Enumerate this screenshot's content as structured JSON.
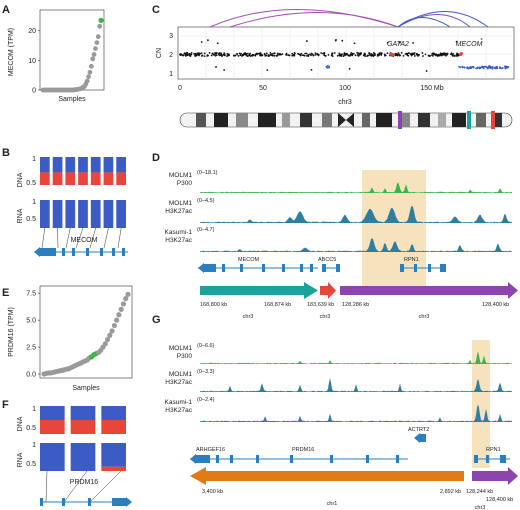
{
  "panel_labels": {
    "a": "A",
    "b": "B",
    "c": "C",
    "d": "D",
    "e": "E",
    "f": "F",
    "g": "G"
  },
  "chart_data": [
    {
      "panel": "A",
      "type": "scatter",
      "ylabel": "MECOM (TPM)",
      "xlabel": "Samples",
      "ylim": [
        0,
        27
      ],
      "yticks": [
        "0",
        "10",
        "20"
      ],
      "n_low": 40,
      "values": [
        0,
        0,
        0,
        0,
        0,
        0,
        0,
        0,
        0,
        0,
        0,
        0,
        0,
        0,
        0,
        0,
        0,
        0,
        0,
        0,
        0,
        0,
        0,
        0.1,
        0.1,
        0.2,
        0.3,
        0.4,
        0.6,
        0.9,
        1.2,
        2,
        3,
        4.5,
        6,
        8,
        10.5,
        12,
        14,
        16,
        18,
        21.5,
        23.5
      ],
      "highlight_color": "#3cb44b",
      "point_color": "#9a9a9a"
    },
    {
      "panel": "C",
      "type": "scatter",
      "ylabel": "CN",
      "xlabel": "chr3",
      "yticks": [
        "1",
        "2",
        "3"
      ],
      "xticks": [
        "0",
        "50",
        "100",
        "150 Mb"
      ],
      "xlim": [
        0,
        200
      ],
      "ylim": [
        0.5,
        3.2
      ],
      "annotations": [
        {
          "text": "GATA2",
          "x": 128
        },
        {
          "text": "MECOM",
          "x": 169
        }
      ],
      "baseline_cn": 2,
      "loss_segments": [
        [
          30,
          32
        ],
        [
          88,
          90
        ],
        [
          168,
          200
        ]
      ]
    },
    {
      "panel": "E",
      "type": "scatter",
      "ylabel": "PRDM16 (TPM)",
      "xlabel": "Samples",
      "ylim": [
        0,
        7.8
      ],
      "yticks": [
        "0.0",
        "2.5",
        "5.0",
        "7.5"
      ],
      "values": [
        0,
        0.05,
        0.1,
        0.1,
        0.15,
        0.2,
        0.25,
        0.3,
        0.35,
        0.4,
        0.45,
        0.5,
        0.6,
        0.7,
        0.8,
        0.9,
        1.0,
        1.1,
        1.2,
        1.3,
        1.5,
        1.6,
        1.8,
        1.9,
        2.0,
        2.2,
        2.5,
        2.8,
        3.2,
        3.6,
        4.0,
        4.5,
        5.0,
        5.5,
        6.0,
        6.5,
        7.0,
        7.4
      ]
    },
    {
      "panel": "B",
      "type": "bar",
      "rows": [
        {
          "label": "DNA",
          "ticks": [
            "0.5",
            "1"
          ],
          "values": [
            0.45,
            0.45,
            0.45,
            0.45,
            0.45,
            0.45,
            0.45
          ]
        },
        {
          "label": "RNA",
          "ticks": [
            "0.5",
            "1"
          ],
          "values": [
            0,
            0,
            0,
            0,
            0,
            0,
            0
          ]
        }
      ],
      "gene": "MECOM"
    },
    {
      "panel": "F",
      "type": "bar",
      "rows": [
        {
          "label": "DNA",
          "ticks": [
            "0.5",
            "1"
          ],
          "values": [
            0.5,
            0.5,
            0.5
          ]
        },
        {
          "label": "RNA",
          "ticks": [
            "0.5",
            "1"
          ],
          "values": [
            0,
            0,
            0.15
          ]
        }
      ],
      "gene": "PRDM16"
    }
  ],
  "panel_d": {
    "tracks": [
      {
        "name1": "MOLM1",
        "name2": "P300",
        "range": "(0–18.1)",
        "color": "#3cb44b"
      },
      {
        "name1": "MOLM1",
        "name2": "H3K27ac",
        "range": "(0–4.5)",
        "color": "#2e7ea0"
      },
      {
        "name1": "Kasumi-1",
        "name2": "H3K27ac",
        "range": "(0–4.7)",
        "color": "#2e7ea0"
      }
    ],
    "genes": [
      "MECOM",
      "ABCC5",
      "RPN1"
    ],
    "coords": [
      "168,800 kb",
      "168,874 kb",
      "183,639 kb",
      "128,286 kb",
      "128,400 kb"
    ],
    "chrom": [
      "chr3",
      "chr3",
      "chr3"
    ]
  },
  "panel_g": {
    "tracks": [
      {
        "name1": "MOLM1",
        "name2": "P300",
        "range": "(0–6.6)",
        "color": "#3cb44b"
      },
      {
        "name1": "MOLM1",
        "name2": "H3K27ac",
        "range": "(0–3.3)",
        "color": "#2e7ea0"
      },
      {
        "name1": "Kasumi-1",
        "name2": "H3K27ac",
        "range": "(0–2.4)",
        "color": "#2e7ea0"
      }
    ],
    "genes": [
      "ARHGEF16",
      "PRDM16",
      "ACTRT2",
      "RPN1"
    ],
    "coords": [
      "3,400 kb",
      "2,892 kb",
      "128,244 kb",
      "128,400 kb"
    ],
    "chrom": [
      "chr1",
      "chr3"
    ]
  },
  "colors": {
    "teal": "#1aa39a",
    "red": "#e8463a",
    "purple": "#8e44ad",
    "orange": "#e07b14",
    "blue": "#3d5bc4",
    "genes": "#2a7fc1",
    "highlight": "#f5deb3"
  }
}
